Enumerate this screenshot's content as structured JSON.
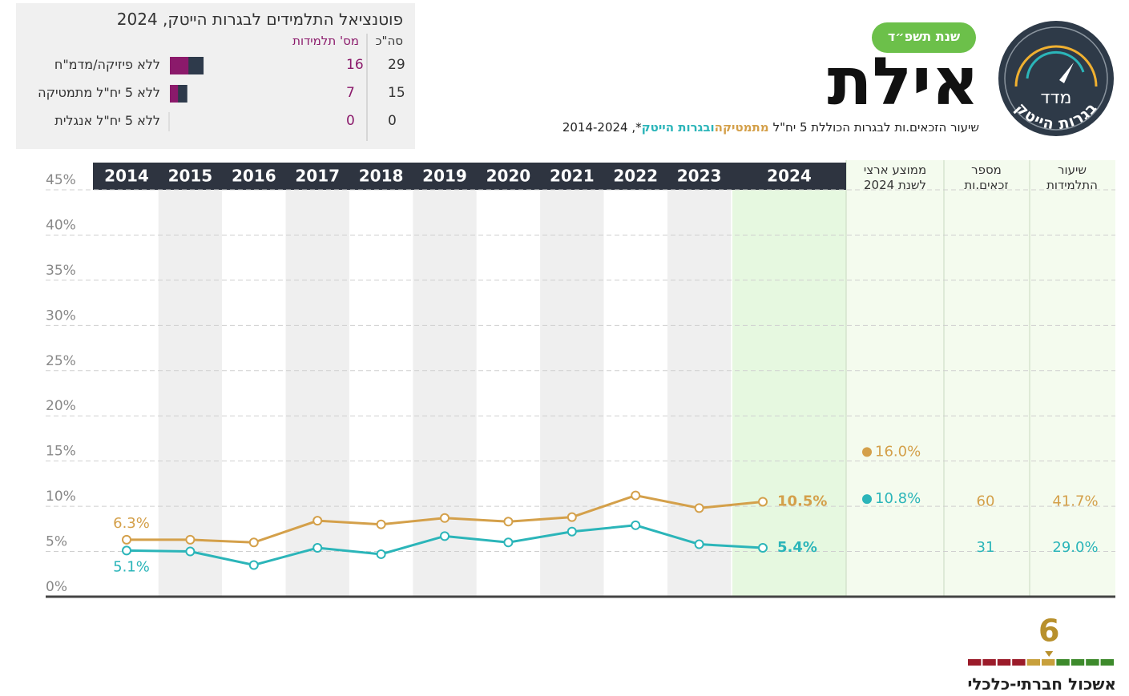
{
  "header": {
    "city": "אילת",
    "badge": "שנת תשפ״ד",
    "logo_top": "מדד",
    "logo_arc": "בגרות הייטק"
  },
  "potential": {
    "title": "פוטנציאל התלמידים לבגרות הייטק, 2024",
    "columns": [
      "סה\"כ",
      "מס' תלמידות"
    ],
    "rows": [
      {
        "label": "ללא פיזיקה/מדמ\"ח",
        "total": 29,
        "girls": 16
      },
      {
        "label": "ללא 5 יח\"ל מתמטיקה",
        "total": 15,
        "girls": 7
      },
      {
        "label": "ללא 5 יח\"ל אנגלית",
        "total": 0,
        "girls": 0
      }
    ],
    "total_color": "#2e3a4b",
    "girls_color": "#8b1a6b"
  },
  "chart_data": {
    "type": "line",
    "subtitle_prefix": "שיעור הזכאים.ות לבגרות הכוללת 5 יח\"ל",
    "subtitle_joiner": "ו",
    "subtitle_suffix": "*, 2014-2024",
    "categories": [
      "2014",
      "2015",
      "2016",
      "2017",
      "2018",
      "2019",
      "2020",
      "2021",
      "2022",
      "2023",
      "2024"
    ],
    "series": [
      {
        "name": "מתמטיקה",
        "color": "#d4a04a",
        "values": [
          6.3,
          6.3,
          6.0,
          8.4,
          8.0,
          8.7,
          8.3,
          8.8,
          11.2,
          9.8,
          10.5
        ],
        "value_labels": [
          "6.3%",
          null,
          null,
          null,
          null,
          null,
          null,
          null,
          null,
          null,
          "10.5%"
        ]
      },
      {
        "name": "בגרות הייטק",
        "color": "#2bb5b9",
        "values": [
          5.1,
          5.0,
          3.5,
          5.4,
          4.7,
          6.7,
          6.0,
          7.2,
          7.9,
          5.8,
          5.4
        ],
        "value_labels": [
          "5.1%",
          null,
          null,
          null,
          null,
          null,
          null,
          null,
          null,
          null,
          "5.4%"
        ]
      }
    ],
    "ylim": [
      0,
      45
    ],
    "yticks": [
      {
        "value": 0,
        "label": "0%"
      },
      {
        "value": 5,
        "label": "5%"
      },
      {
        "value": 10,
        "label": "10%"
      },
      {
        "value": 15,
        "label": "15%"
      },
      {
        "value": 20,
        "label": "20%"
      },
      {
        "value": 25,
        "label": "25%"
      },
      {
        "value": 30,
        "label": "30%"
      },
      {
        "value": 35,
        "label": "35%"
      },
      {
        "value": 40,
        "label": "40%"
      },
      {
        "value": 45,
        "label": "45%"
      }
    ],
    "grid": true,
    "national_average": {
      "header": [
        "ממוצע ארצי",
        "לשנת 2024"
      ],
      "values": [
        16.0,
        10.8
      ],
      "value_labels": [
        "16.0%",
        "10.8%"
      ]
    },
    "eligible_count": {
      "header": [
        "מספר",
        "זכאים.ות"
      ],
      "values": [
        60,
        31
      ]
    },
    "student_rate": {
      "header": [
        "שיעור",
        "התלמידות"
      ],
      "values": [
        41.7,
        29.0
      ],
      "value_labels": [
        "41.7%",
        "29.0%"
      ]
    }
  },
  "cluster": {
    "value": 6,
    "label": "אשכול חברתי-כלכלי",
    "colors": [
      "#9b1b2a",
      "#9b1b2a",
      "#9b1b2a",
      "#9b1b2a",
      "#c8a03c",
      "#c8a03c",
      "#3d8a2c",
      "#3d8a2c",
      "#3d8a2c",
      "#3d8a2c"
    ]
  }
}
